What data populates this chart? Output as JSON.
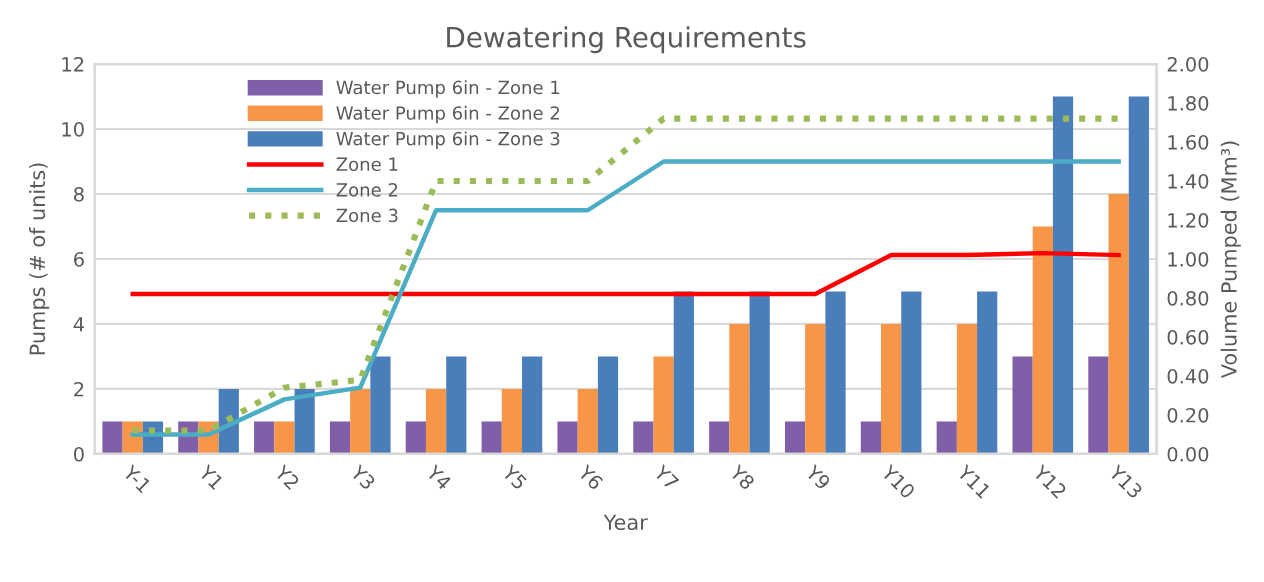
{
  "chart_data": {
    "type": "bar",
    "title": "Dewatering Requirements",
    "xlabel": "Year",
    "ylabel": "Pumps (# of units)",
    "y2label": "Volume Pumped (Mm³)",
    "categories": [
      "Y-1",
      "Y1",
      "Y2",
      "Y3",
      "Y4",
      "Y5",
      "Y6",
      "Y7",
      "Y8",
      "Y9",
      "Y10",
      "Y11",
      "Y12",
      "Y13"
    ],
    "series": [
      {
        "name": "Water Pump 6in - Zone 1",
        "color": "#7f5fa8",
        "values": [
          1,
          1,
          1,
          1,
          1,
          1,
          1,
          1,
          1,
          1,
          1,
          1,
          3,
          3
        ]
      },
      {
        "name": "Water Pump 6in - Zone 2",
        "color": "#f79646",
        "values": [
          1,
          1,
          1,
          2,
          2,
          2,
          2,
          3,
          4,
          4,
          4,
          4,
          7,
          8
        ]
      },
      {
        "name": "Water Pump 6in - Zone 3",
        "color": "#4a7ebb",
        "values": [
          1,
          2,
          2,
          3,
          3,
          3,
          3,
          5,
          5,
          5,
          5,
          5,
          11,
          11
        ]
      },
      {
        "name": "Zone 1",
        "type": "line",
        "axis": "y2",
        "color": "#ff0000",
        "line_style": "solid",
        "values": [
          0.82,
          0.82,
          0.82,
          0.82,
          0.82,
          0.82,
          0.82,
          0.82,
          0.82,
          0.82,
          1.02,
          1.02,
          1.03,
          1.02
        ]
      },
      {
        "name": "Zone 2",
        "type": "line",
        "axis": "y2",
        "color": "#4bacc6",
        "line_style": "solid",
        "values": [
          0.1,
          0.1,
          0.28,
          0.34,
          1.25,
          1.25,
          1.25,
          1.5,
          1.5,
          1.5,
          1.5,
          1.5,
          1.5,
          1.5
        ]
      },
      {
        "name": "Zone 3",
        "type": "line",
        "axis": "y2",
        "color": "#9bbb59",
        "line_style": "dotted",
        "values": [
          0.12,
          0.12,
          0.34,
          0.38,
          1.4,
          1.4,
          1.4,
          1.72,
          1.72,
          1.72,
          1.72,
          1.72,
          1.72,
          1.72
        ]
      }
    ],
    "ylim": [
      0,
      12
    ],
    "yticks": [
      0,
      2,
      4,
      6,
      8,
      10,
      12
    ],
    "y2lim": [
      0,
      2
    ],
    "y2ticks": [
      {
        "value": 0,
        "label": "0.00"
      },
      {
        "value": 0.2,
        "label": "0.20"
      },
      {
        "value": 0.4,
        "label": "0.40"
      },
      {
        "value": 0.6,
        "label": "0.60"
      },
      {
        "value": 0.8,
        "label": "0.80"
      },
      {
        "value": 1.0,
        "label": "1.00"
      },
      {
        "value": 1.2,
        "label": "1.20"
      },
      {
        "value": 1.4,
        "label": "1.40"
      },
      {
        "value": 1.6,
        "label": "1.60"
      },
      {
        "value": 1.8,
        "label": "1.80"
      },
      {
        "value": 2.0,
        "label": "2.00"
      }
    ],
    "grid": "y",
    "legend": "top left",
    "marker": "none"
  }
}
